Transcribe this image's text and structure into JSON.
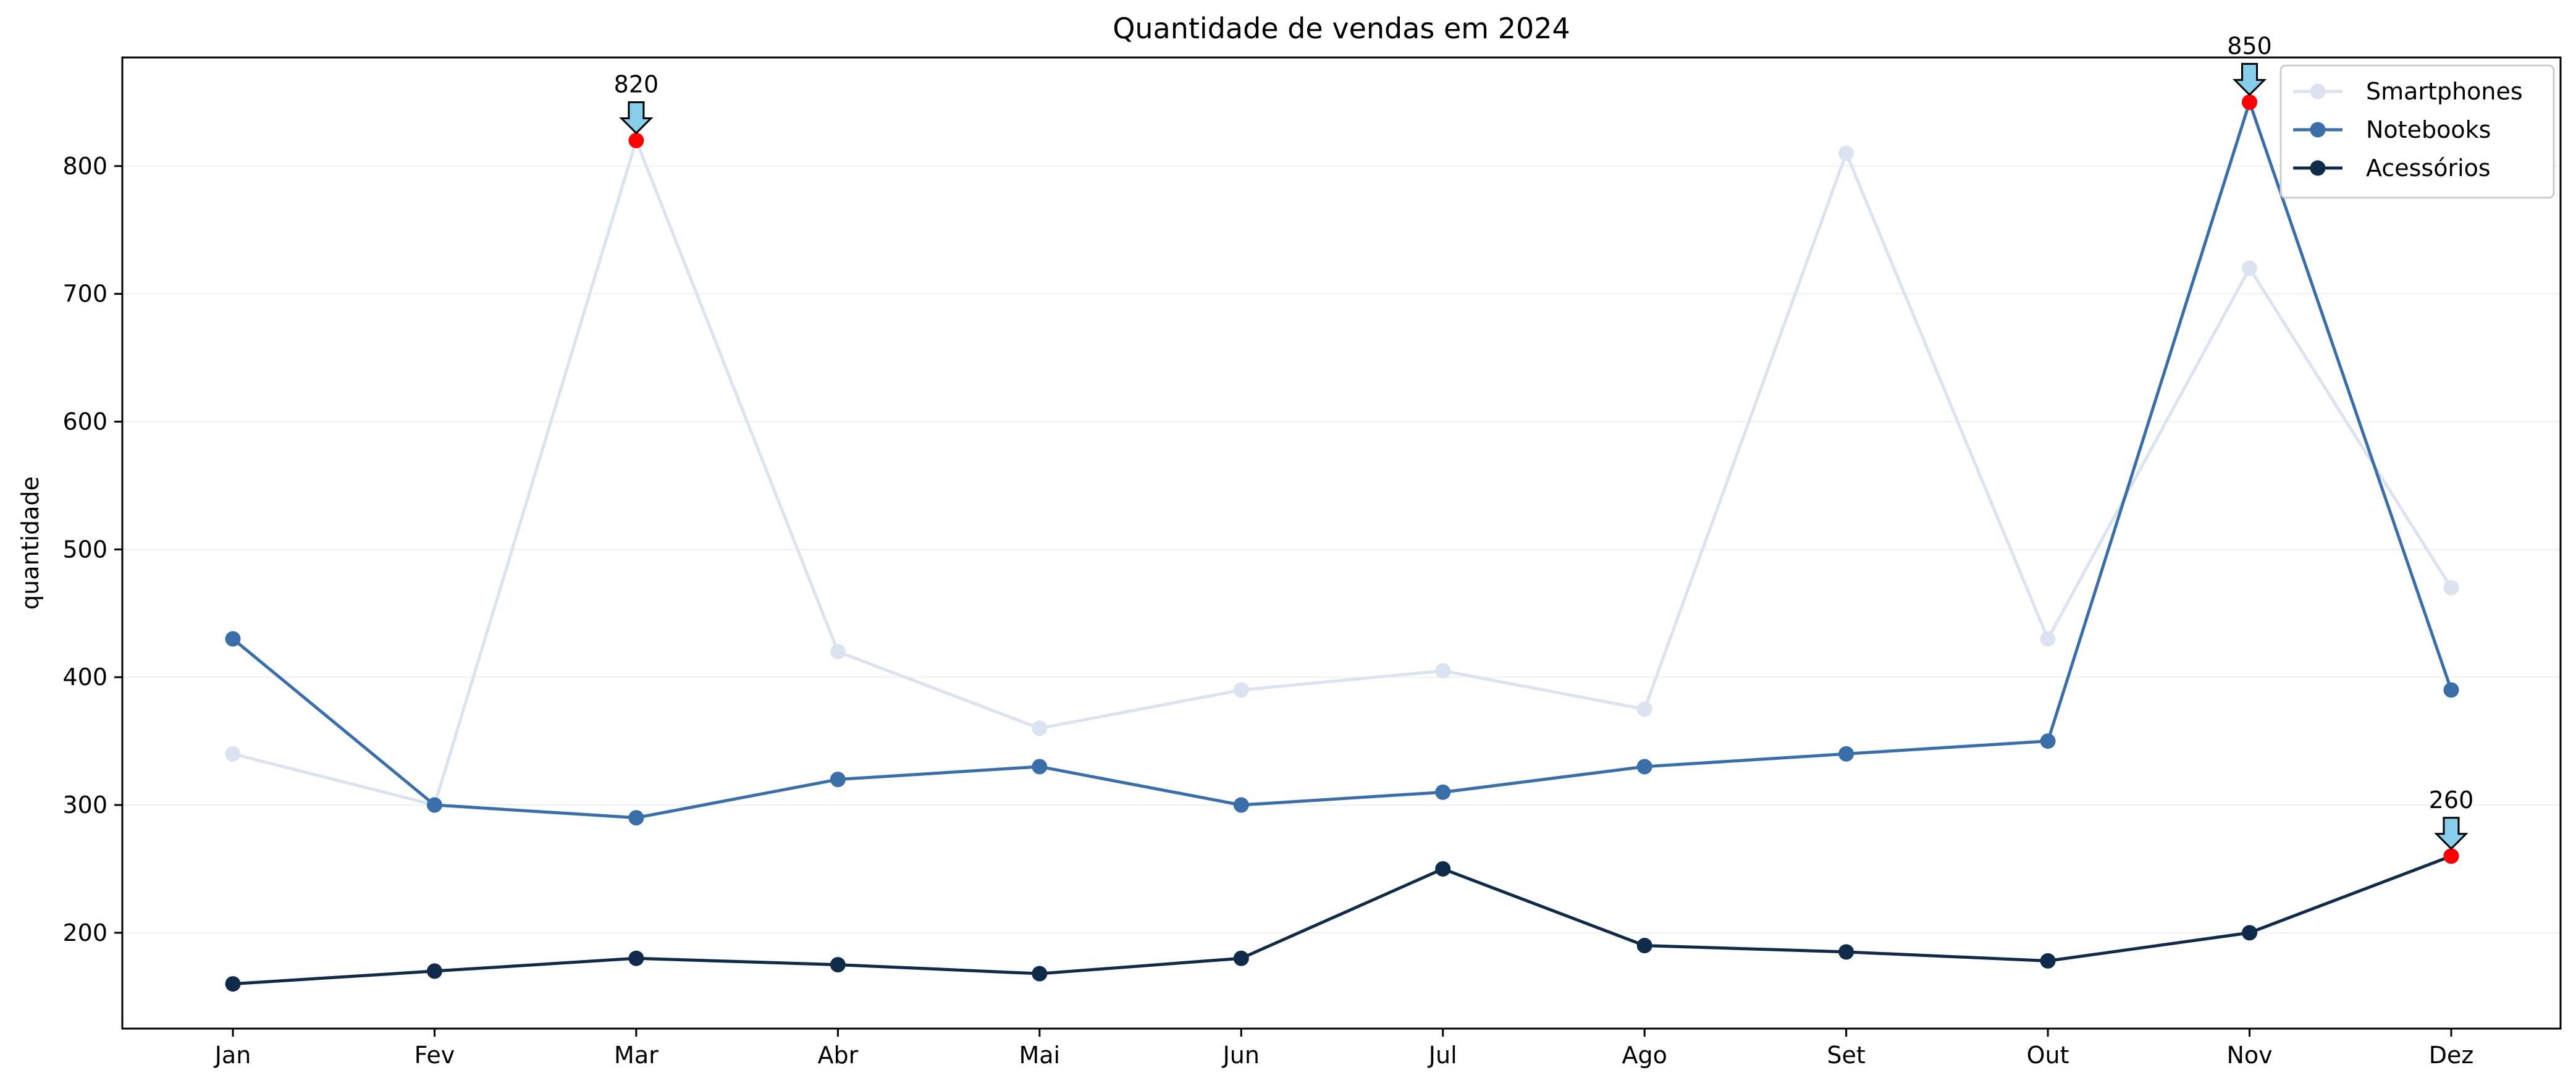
{
  "chart_data": {
    "type": "line",
    "title": "Quantidade de vendas em 2024",
    "xlabel": "",
    "ylabel": "quantidade",
    "categories": [
      "Jan",
      "Fev",
      "Mar",
      "Abr",
      "Mai",
      "Jun",
      "Jul",
      "Ago",
      "Set",
      "Out",
      "Nov",
      "Dez"
    ],
    "ylim": [
      125,
      885
    ],
    "yticks": [
      200,
      300,
      400,
      500,
      600,
      700,
      800
    ],
    "grid": true,
    "legend_position": "top-right",
    "series": [
      {
        "name": "Smartphones",
        "color": "#dae3ef",
        "values": [
          340,
          300,
          820,
          420,
          360,
          390,
          405,
          375,
          810,
          430,
          720,
          470
        ]
      },
      {
        "name": "Notebooks",
        "color": "#3a6ea8",
        "values": [
          430,
          300,
          290,
          320,
          330,
          300,
          310,
          330,
          340,
          350,
          850,
          390
        ]
      },
      {
        "name": "Acessórios",
        "color": "#102a4a",
        "values": [
          160,
          170,
          180,
          175,
          168,
          180,
          250,
          190,
          185,
          178,
          200,
          260
        ]
      }
    ],
    "highlight_color": "#ff0000",
    "annotation_arrow_color": "#87ceeb",
    "annotations": [
      {
        "label": "820",
        "series": "Smartphones",
        "category": "Mar",
        "value": 820
      },
      {
        "label": "850",
        "series": "Notebooks",
        "category": "Nov",
        "value": 850
      },
      {
        "label": "260",
        "series": "Acessórios",
        "category": "Dez",
        "value": 260
      }
    ]
  }
}
